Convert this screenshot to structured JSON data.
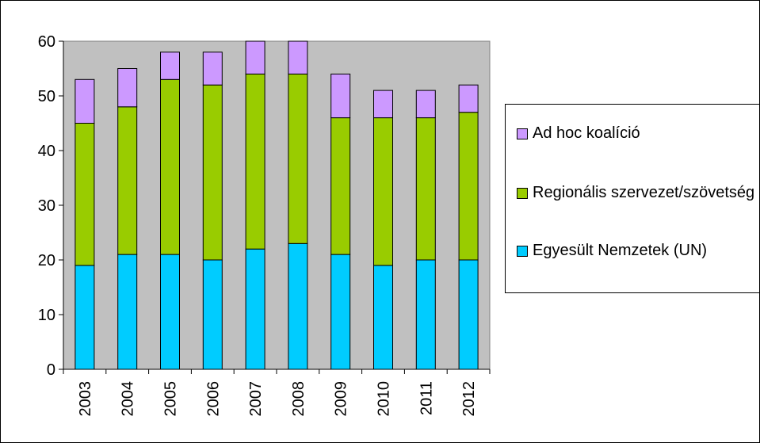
{
  "chart_data": {
    "type": "bar",
    "stacked": true,
    "categories": [
      "2003",
      "2004",
      "2005",
      "2006",
      "2007",
      "2008",
      "2009",
      "2010",
      "2011",
      "2012"
    ],
    "series": [
      {
        "name": "Egyesült Nemzetek (UN)",
        "color": "#00ccff",
        "values": [
          19,
          21,
          21,
          20,
          22,
          23,
          21,
          19,
          20,
          20
        ]
      },
      {
        "name": "Regionális szervezet/szövetség",
        "color": "#99cc00",
        "values": [
          26,
          27,
          32,
          32,
          32,
          31,
          25,
          27,
          26,
          27
        ]
      },
      {
        "name": "Ad hoc koalíció",
        "color": "#cc99ff",
        "values": [
          8,
          7,
          5,
          6,
          6,
          6,
          8,
          5,
          5,
          5
        ]
      }
    ],
    "ylim": [
      0,
      60
    ],
    "yticks": [
      0,
      10,
      20,
      30,
      40,
      50,
      60
    ],
    "grid": false,
    "legend": "right"
  }
}
